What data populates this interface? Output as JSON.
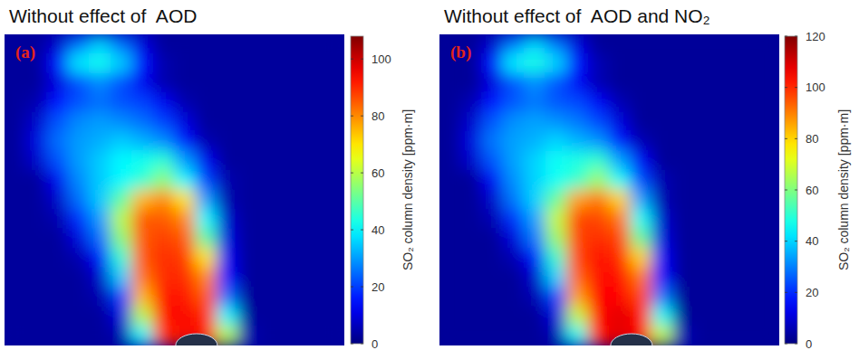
{
  "chart_data": [
    {
      "type": "heatmap",
      "title": "Without effect of  AOD",
      "panel_label": "(a)",
      "colorbar": {
        "label": "SO₂ column density [ppm·m]",
        "range": [
          0,
          108
        ],
        "ticks": [
          0,
          20,
          40,
          60,
          80,
          100
        ]
      },
      "cells": [
        [
          3,
          3,
          8,
          25,
          35,
          25,
          10,
          3,
          3,
          3,
          3,
          3,
          3,
          3,
          3,
          3
        ],
        [
          3,
          3,
          15,
          38,
          42,
          35,
          15,
          5,
          3,
          3,
          3,
          3,
          3,
          3,
          3,
          3
        ],
        [
          3,
          3,
          10,
          22,
          28,
          22,
          12,
          5,
          3,
          3,
          3,
          3,
          3,
          3,
          3,
          3
        ],
        [
          3,
          5,
          15,
          22,
          25,
          22,
          20,
          12,
          5,
          3,
          3,
          3,
          3,
          3,
          3,
          3
        ],
        [
          3,
          8,
          22,
          28,
          30,
          28,
          25,
          20,
          10,
          3,
          3,
          3,
          3,
          3,
          3,
          3
        ],
        [
          3,
          10,
          25,
          30,
          32,
          35,
          32,
          28,
          15,
          5,
          3,
          3,
          3,
          3,
          3,
          3
        ],
        [
          3,
          8,
          22,
          30,
          35,
          40,
          42,
          45,
          30,
          12,
          3,
          3,
          3,
          3,
          3,
          3
        ],
        [
          3,
          3,
          12,
          28,
          35,
          40,
          45,
          55,
          40,
          20,
          5,
          3,
          3,
          3,
          3,
          3
        ],
        [
          3,
          3,
          8,
          25,
          35,
          50,
          75,
          80,
          70,
          30,
          5,
          3,
          3,
          3,
          3,
          3
        ],
        [
          3,
          3,
          5,
          18,
          30,
          60,
          85,
          85,
          80,
          40,
          8,
          3,
          3,
          3,
          3,
          3
        ],
        [
          3,
          3,
          3,
          10,
          25,
          55,
          85,
          88,
          85,
          50,
          10,
          3,
          3,
          3,
          3,
          3
        ],
        [
          3,
          3,
          3,
          5,
          15,
          45,
          85,
          90,
          88,
          70,
          12,
          3,
          3,
          3,
          3,
          3
        ],
        [
          3,
          3,
          3,
          3,
          8,
          35,
          82,
          90,
          90,
          80,
          15,
          3,
          3,
          3,
          3,
          3
        ],
        [
          3,
          3,
          3,
          3,
          5,
          20,
          75,
          92,
          92,
          85,
          25,
          3,
          3,
          3,
          3,
          3
        ],
        [
          3,
          3,
          3,
          3,
          3,
          10,
          60,
          92,
          95,
          90,
          40,
          3,
          3,
          3,
          3,
          3
        ],
        [
          3,
          3,
          3,
          3,
          3,
          5,
          40,
          90,
          95,
          92,
          60,
          5,
          3,
          3,
          3,
          3
        ]
      ]
    },
    {
      "type": "heatmap",
      "title": "Without effect of  AOD and NO₂",
      "panel_label": "(b)",
      "colorbar": {
        "label": "SO₂ column density [ppm·m]",
        "range": [
          0,
          120
        ],
        "ticks": [
          0,
          20,
          40,
          60,
          80,
          100,
          120
        ]
      },
      "cells": [
        [
          3,
          3,
          9,
          29,
          40,
          29,
          11,
          3,
          3,
          3,
          3,
          3,
          3,
          3,
          3,
          3
        ],
        [
          3,
          3,
          17,
          43,
          48,
          40,
          17,
          6,
          3,
          3,
          3,
          3,
          3,
          3,
          3,
          3
        ],
        [
          3,
          3,
          11,
          25,
          32,
          25,
          14,
          6,
          3,
          3,
          3,
          3,
          3,
          3,
          3,
          3
        ],
        [
          3,
          6,
          17,
          25,
          29,
          25,
          23,
          14,
          6,
          3,
          3,
          3,
          3,
          3,
          3,
          3
        ],
        [
          3,
          9,
          25,
          32,
          34,
          32,
          29,
          23,
          11,
          3,
          3,
          3,
          3,
          3,
          3,
          3
        ],
        [
          3,
          11,
          29,
          34,
          36,
          40,
          36,
          32,
          17,
          6,
          3,
          3,
          3,
          3,
          3,
          3
        ],
        [
          3,
          9,
          25,
          34,
          40,
          46,
          48,
          51,
          34,
          14,
          3,
          3,
          3,
          3,
          3,
          3
        ],
        [
          3,
          3,
          14,
          32,
          40,
          46,
          51,
          63,
          46,
          23,
          6,
          3,
          3,
          3,
          3,
          3
        ],
        [
          3,
          3,
          9,
          29,
          40,
          57,
          86,
          91,
          80,
          34,
          6,
          3,
          3,
          3,
          3,
          3
        ],
        [
          3,
          3,
          6,
          21,
          34,
          68,
          97,
          97,
          91,
          46,
          9,
          3,
          3,
          3,
          3,
          3
        ],
        [
          3,
          3,
          3,
          11,
          29,
          63,
          97,
          100,
          97,
          57,
          11,
          3,
          3,
          3,
          3,
          3
        ],
        [
          3,
          3,
          3,
          6,
          17,
          51,
          97,
          103,
          100,
          80,
          14,
          3,
          3,
          3,
          3,
          3
        ],
        [
          3,
          3,
          3,
          3,
          9,
          40,
          93,
          103,
          103,
          91,
          17,
          3,
          3,
          3,
          3,
          3
        ],
        [
          3,
          3,
          3,
          3,
          6,
          23,
          86,
          105,
          105,
          97,
          29,
          3,
          3,
          3,
          3,
          3
        ],
        [
          3,
          3,
          3,
          3,
          3,
          11,
          68,
          105,
          108,
          103,
          46,
          3,
          3,
          3,
          3,
          3
        ],
        [
          3,
          3,
          3,
          3,
          3,
          6,
          46,
          103,
          108,
          105,
          68,
          6,
          3,
          3,
          3,
          3
        ]
      ]
    }
  ]
}
